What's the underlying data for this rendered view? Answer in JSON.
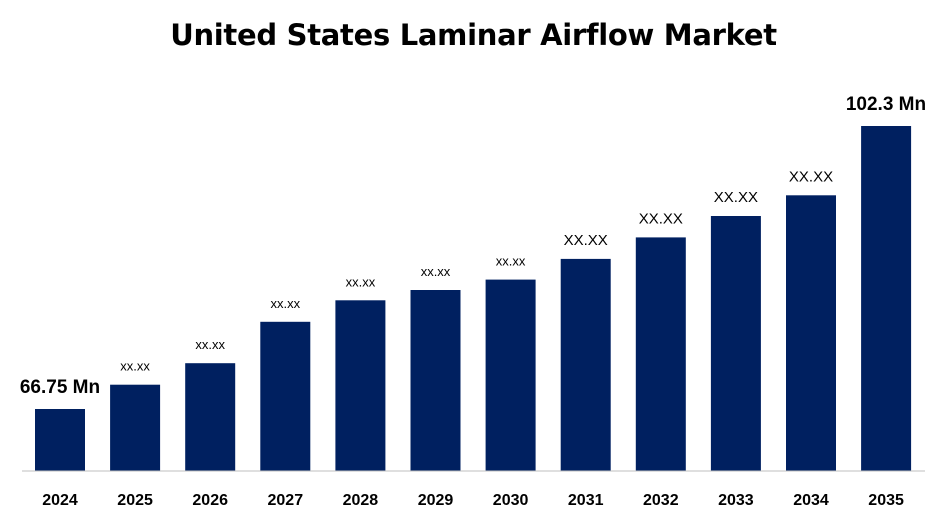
{
  "chart_data": {
    "type": "bar",
    "title": "United States Laminar Airflow Market",
    "categories": [
      "2024",
      "2025",
      "2026",
      "2027",
      "2028",
      "2029",
      "2030",
      "2031",
      "2032",
      "2033",
      "2034",
      "2035"
    ],
    "values": [
      66.75,
      69.8,
      72.5,
      77.7,
      80.4,
      81.7,
      83.0,
      85.6,
      88.3,
      91.0,
      93.6,
      102.3
    ],
    "data_labels": [
      "66.75 Mn",
      "xx.xx",
      "xx.xx",
      "xx.xx",
      "xx.xx",
      "xx.xx",
      "xx.xx",
      "XX.XX",
      "XX.XX",
      "XX.XX",
      "XX.XX",
      "102.3 Mn"
    ],
    "bar_color": "#002060",
    "xlabel": "",
    "ylabel": "",
    "grid": false,
    "legend": "none"
  }
}
